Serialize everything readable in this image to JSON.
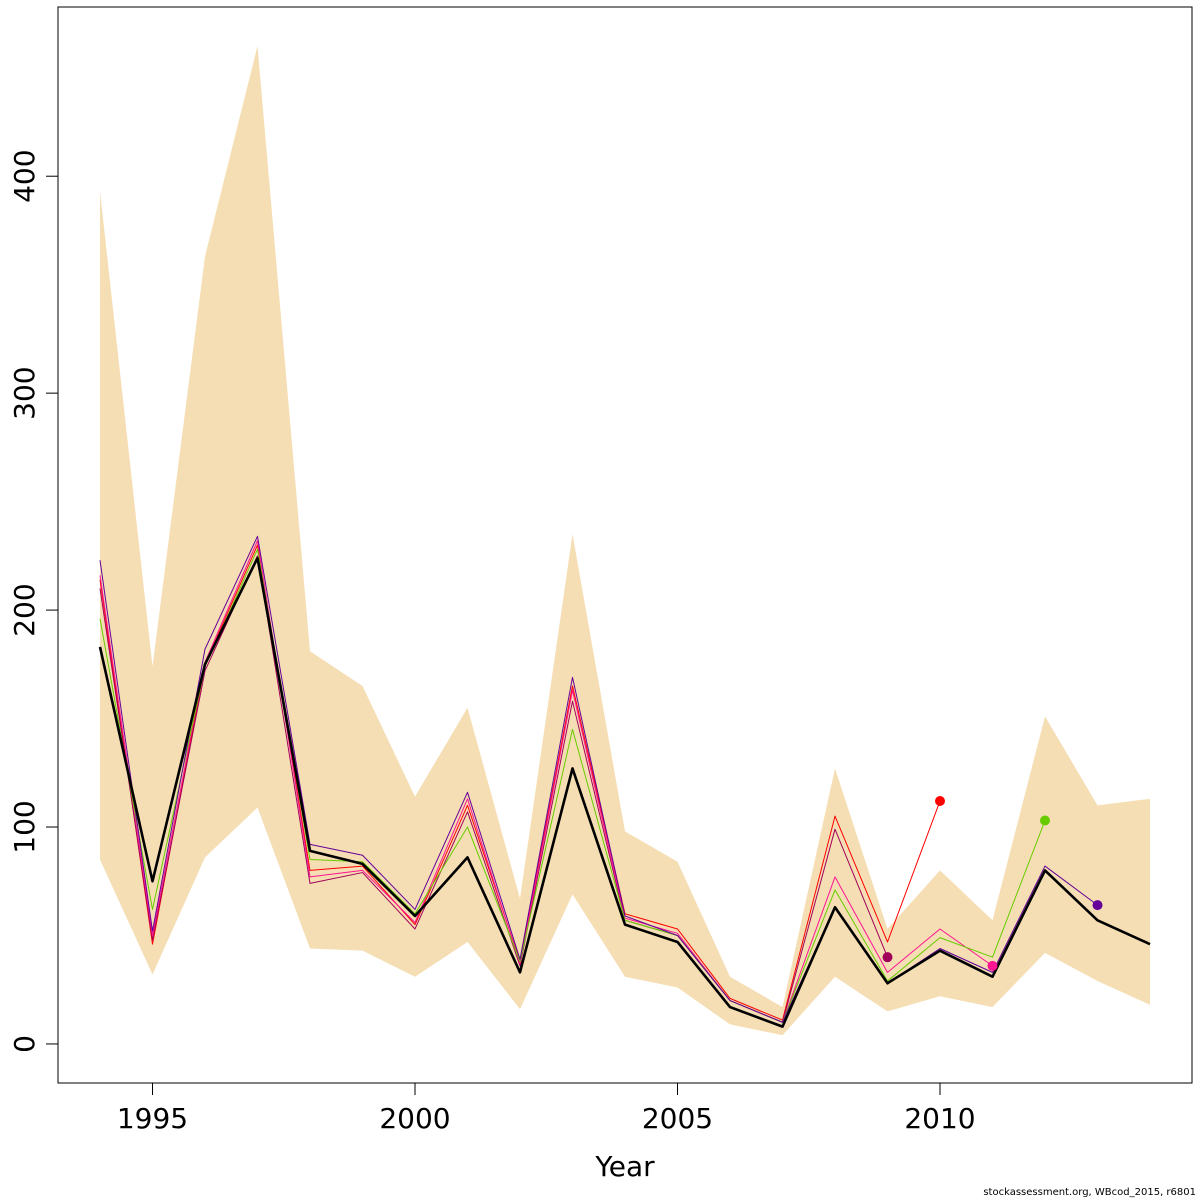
{
  "chart_data": {
    "type": "line",
    "xlabel": "Year",
    "ylabel": "",
    "xlim": [
      1993.2,
      2014.8
    ],
    "ylim": [
      -18,
      478
    ],
    "x_ticks": [
      1995,
      2000,
      2005,
      2010
    ],
    "y_ticks": [
      0,
      100,
      200,
      300,
      400
    ],
    "grid": false,
    "confidence_band": {
      "color": "#f5deb3",
      "x": [
        1994,
        1995,
        1996,
        1997,
        1998,
        1999,
        2000,
        2001,
        2002,
        2003,
        2004,
        2005,
        2006,
        2007,
        2008,
        2009,
        2010,
        2011,
        2012,
        2013,
        2014
      ],
      "lower": [
        85,
        32,
        86,
        109,
        44,
        43,
        31,
        47,
        16,
        69,
        31,
        26,
        9,
        4,
        31,
        15,
        22,
        17,
        42,
        29,
        18
      ],
      "upper": [
        393,
        174,
        363,
        460,
        181,
        165,
        114,
        155,
        67,
        235,
        98,
        84,
        31,
        17,
        127,
        53,
        80,
        57,
        151,
        110,
        113
      ]
    },
    "series": [
      {
        "color": "#ff0000",
        "x": [
          1994,
          1995,
          1996,
          1997,
          1998,
          1999,
          2000,
          2001,
          2002,
          2003,
          2004,
          2005,
          2006,
          2007,
          2008,
          2009,
          2010
        ],
        "values": [
          214,
          46,
          175,
          230,
          80,
          82,
          55,
          110,
          38,
          165,
          60,
          53,
          21,
          11,
          105,
          47,
          112
        ],
        "point": true
      },
      {
        "color": "#a0005a",
        "x": [
          1994,
          1995,
          1996,
          1997,
          1998,
          1999,
          2000,
          2001,
          2002,
          2003,
          2004,
          2005,
          2006,
          2007,
          2008,
          2009
        ],
        "values": [
          210,
          48,
          172,
          225,
          74,
          79,
          53,
          107,
          36,
          158,
          57,
          50,
          20,
          10,
          99,
          40
        ],
        "point": true
      },
      {
        "color": "#ff1493",
        "x": [
          1994,
          1995,
          1996,
          1997,
          1998,
          1999,
          2000,
          2001,
          2002,
          2003,
          2004,
          2005,
          2006,
          2007,
          2008,
          2009,
          2010,
          2011
        ],
        "values": [
          216,
          50,
          176,
          232,
          77,
          80,
          56,
          113,
          37,
          163,
          58,
          51,
          20,
          10,
          77,
          33,
          53,
          36
        ],
        "point": true
      },
      {
        "color": "#66cc00",
        "x": [
          1994,
          1995,
          1996,
          1997,
          1998,
          1999,
          2000,
          2001,
          2002,
          2003,
          2004,
          2005,
          2006,
          2007,
          2008,
          2009,
          2010,
          2011,
          2012
        ],
        "values": [
          196,
          62,
          174,
          228,
          85,
          84,
          60,
          100,
          38,
          145,
          57,
          50,
          20,
          10,
          71,
          29,
          49,
          40,
          103
        ],
        "point": true
      },
      {
        "color": "#660099",
        "x": [
          1994,
          1995,
          1996,
          1997,
          1998,
          1999,
          2000,
          2001,
          2002,
          2003,
          2004,
          2005,
          2006,
          2007,
          2008,
          2009,
          2010,
          2011,
          2012,
          2013
        ],
        "values": [
          223,
          52,
          182,
          234,
          92,
          87,
          62,
          116,
          39,
          169,
          59,
          50,
          20,
          10,
          63,
          28,
          44,
          33,
          82,
          64
        ],
        "point": true
      },
      {
        "color": "#000000",
        "x": [
          1994,
          1995,
          1996,
          1997,
          1998,
          1999,
          2000,
          2001,
          2002,
          2003,
          2004,
          2005,
          2006,
          2007,
          2008,
          2009,
          2010,
          2011,
          2012,
          2013,
          2014
        ],
        "values": [
          183,
          75,
          175,
          224,
          89,
          83,
          59,
          86,
          33,
          127,
          55,
          47,
          17,
          8,
          63,
          28,
          43,
          31,
          80,
          57,
          46
        ],
        "point": false,
        "bold": true
      }
    ]
  },
  "footnote": "stockassessment.org, WBcod_2015, r6801"
}
